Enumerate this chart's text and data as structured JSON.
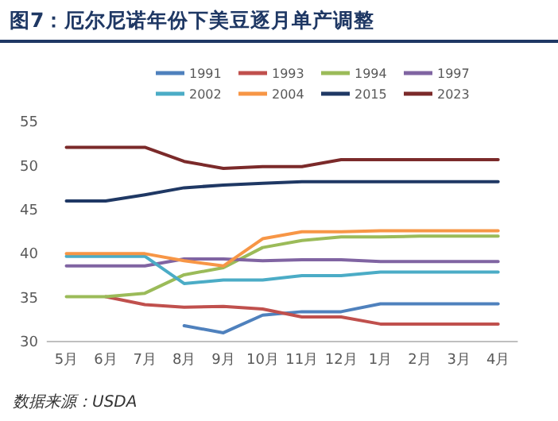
{
  "chart_data": {
    "type": "line",
    "title": "图7：厄尔尼诺年份下美豆逐月单产调整",
    "categories": [
      "5月",
      "6月",
      "7月",
      "8月",
      "9月",
      "10月",
      "11月",
      "12月",
      "1月",
      "2月",
      "3月",
      "4月"
    ],
    "series": [
      {
        "name": "1991",
        "color": "#4f81bd",
        "values": [
          null,
          null,
          null,
          31.8,
          31.0,
          33.0,
          33.4,
          33.4,
          34.3,
          34.3,
          34.3,
          34.3
        ]
      },
      {
        "name": "1993",
        "color": "#c0504d",
        "values": [
          null,
          35.1,
          34.2,
          33.9,
          34.0,
          33.7,
          32.8,
          32.8,
          32.0,
          32.0,
          32.0,
          32.0
        ]
      },
      {
        "name": "1994",
        "color": "#9bbb59",
        "values": [
          35.1,
          35.1,
          35.5,
          37.6,
          38.4,
          40.7,
          41.5,
          41.9,
          41.9,
          42.0,
          42.0,
          42.0
        ]
      },
      {
        "name": "1997",
        "color": "#8064a2",
        "values": [
          38.6,
          38.6,
          38.6,
          39.4,
          39.4,
          39.2,
          39.3,
          39.3,
          39.1,
          39.1,
          39.1,
          39.1
        ]
      },
      {
        "name": "2002",
        "color": "#4bacc6",
        "values": [
          39.7,
          39.7,
          39.7,
          36.6,
          37.0,
          37.0,
          37.5,
          37.5,
          37.9,
          37.9,
          37.9,
          37.9
        ]
      },
      {
        "name": "2004",
        "color": "#f79646",
        "values": [
          40.0,
          40.0,
          40.0,
          39.2,
          38.6,
          41.7,
          42.5,
          42.5,
          42.6,
          42.6,
          42.6,
          42.6
        ]
      },
      {
        "name": "2015",
        "color": "#1f3864",
        "values": [
          46.0,
          46.0,
          46.7,
          47.5,
          47.8,
          48.0,
          48.2,
          48.2,
          48.2,
          48.2,
          48.2,
          48.2
        ]
      },
      {
        "name": "2023",
        "color": "#7b2a2a",
        "values": [
          52.1,
          52.1,
          52.1,
          50.5,
          49.7,
          49.9,
          49.9,
          50.7,
          50.7,
          50.7,
          50.7,
          50.7
        ]
      }
    ],
    "ylim": [
      30,
      55
    ],
    "yticks": [
      30,
      35,
      40,
      45,
      50,
      55
    ],
    "grid": false,
    "legend": "top",
    "marker": "none",
    "line_style": "solid",
    "annotations": [
      "数据来源：USDA"
    ]
  }
}
